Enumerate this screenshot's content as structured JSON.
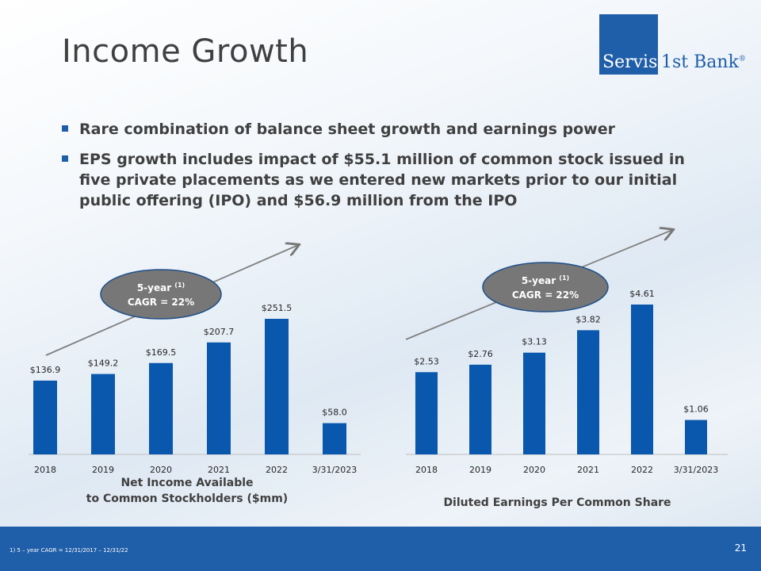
{
  "slide": {
    "title": "Income Growth",
    "page_number": "21",
    "footnote": "1)     5 – year CAGR = 12/31/2017 – 12/31/22"
  },
  "logo": {
    "word1": "Servis",
    "word2": "1st Bank",
    "mark": "®"
  },
  "bullets": [
    "Rare combination of balance sheet growth and earnings power",
    "EPS growth includes impact of $55.1 million of common stock issued in five private placements as we entered new markets prior to our initial public offering (IPO) and $56.9 million from the IPO"
  ],
  "colors": {
    "brand_blue": "#1f5ea8",
    "bar_blue": "#0a58ae",
    "bubble_gray": "#777777",
    "text_gray": "#404040"
  },
  "chart_data": [
    {
      "type": "bar",
      "title": "Net Income Available\nto Common Stockholders ($mm)",
      "categories": [
        "2018",
        "2019",
        "2020",
        "2021",
        "2022",
        "3/31/2023"
      ],
      "values": [
        136.9,
        149.2,
        169.5,
        207.7,
        251.5,
        58.0
      ],
      "data_labels": [
        "$136.9",
        "$149.2",
        "$169.5",
        "$207.7",
        "$251.5",
        "$58.0"
      ],
      "ylim": [
        0,
        300
      ],
      "annotation": {
        "line1": "5-year",
        "superscript": "(1)",
        "line2": "CAGR = 22%"
      }
    },
    {
      "type": "bar",
      "title": "Diluted Earnings Per Common Share",
      "categories": [
        "2018",
        "2019",
        "2020",
        "2021",
        "2022",
        "3/31/2023"
      ],
      "values": [
        2.53,
        2.76,
        3.13,
        3.82,
        4.61,
        1.06
      ],
      "data_labels": [
        "$2.53",
        "$2.76",
        "$3.13",
        "$3.82",
        "$4.61",
        "$1.06"
      ],
      "ylim": [
        0,
        5.5
      ],
      "annotation": {
        "line1": "5-year",
        "superscript": "(1)",
        "line2": "CAGR = 22%"
      }
    }
  ]
}
